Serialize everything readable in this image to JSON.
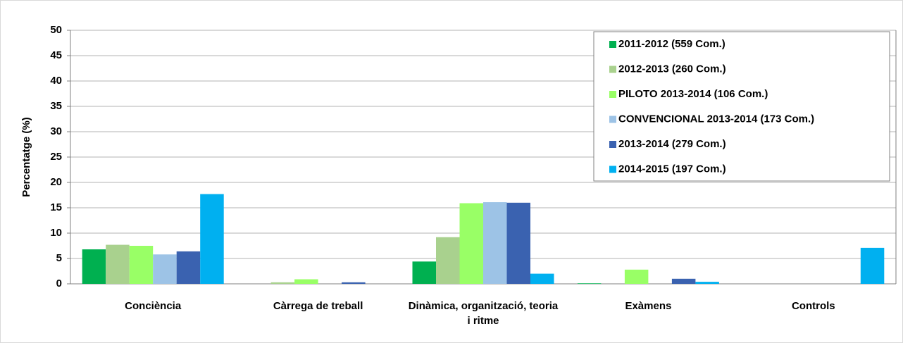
{
  "chart_data": {
    "type": "bar",
    "y_label": "Percentatge (%)",
    "categories": [
      "Conciència",
      "Càrrega de treball",
      "Dinàmica, organització, teoria i ritme",
      "Exàmens",
      "Controls"
    ],
    "series": [
      {
        "name": "2011-2012 (559 Com.)",
        "color": "#00b050",
        "values": [
          6.8,
          0,
          4.4,
          0.1,
          0
        ]
      },
      {
        "name": "2012-2013 (260 Com.)",
        "color": "#a9d18e",
        "values": [
          7.7,
          0.3,
          9.2,
          0,
          0
        ]
      },
      {
        "name": "PILOTO 2013-2014 (106 Com.)",
        "color": "#99ff66",
        "values": [
          7.5,
          0.9,
          15.9,
          2.8,
          0
        ]
      },
      {
        "name": "CONVENCIONAL 2013-2014 (173 Com.)",
        "color": "#9dc3e6",
        "values": [
          5.8,
          0,
          16.1,
          0,
          0
        ]
      },
      {
        "name": "2013-2014 (279 Com.)",
        "color": "#3a62b0",
        "values": [
          6.4,
          0.3,
          16.0,
          1.0,
          0
        ]
      },
      {
        "name": "2014-2015 (197 Com.)",
        "color": "#00b0f0",
        "values": [
          17.7,
          0,
          2.0,
          0.4,
          7.1
        ]
      }
    ],
    "ylim": [
      0,
      50
    ],
    "yticks": [
      0,
      5,
      10,
      15,
      20,
      25,
      30,
      35,
      40,
      45,
      50
    ],
    "grid": true,
    "legend": "top-right"
  }
}
